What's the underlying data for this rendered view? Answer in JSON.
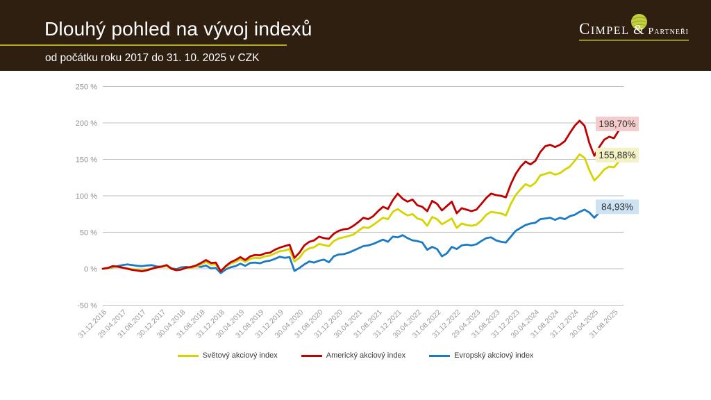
{
  "header": {
    "title": "Dlouhý pohled na vývoj indexů",
    "subtitle": "od počátku roku 2017 do 31. 10. 2025 v CZK"
  },
  "logo": {
    "brand": "Cimpel",
    "amp": "&",
    "partner": "Partneři",
    "ball_color": "#c3d042",
    "underline_color": "#8f921b"
  },
  "chart_data": {
    "type": "line",
    "points_are": "monthly values from 31.12.2016 to 31.10.2025",
    "grid": "horizontal",
    "legend_position": "bottom",
    "y_axis": {
      "min": -50,
      "max": 250,
      "step": 50,
      "ticks": [
        {
          "value": 250,
          "label": "250 %"
        },
        {
          "value": 200,
          "label": "200 %"
        },
        {
          "value": 150,
          "label": "150 %"
        },
        {
          "value": 100,
          "label": "100 %"
        },
        {
          "value": 50,
          "label": "50 %"
        },
        {
          "value": 0,
          "label": "0 %"
        },
        {
          "value": -50,
          "label": "-50 %"
        }
      ]
    },
    "x_tick_every": 4,
    "x_tick_labels": [
      "31.12.2016",
      "29.04.2017",
      "31.08.2017",
      "30.12.2017",
      "30.04.2018",
      "31.08.2018",
      "31.12.2018",
      "30.04.2019",
      "31.08.2019",
      "31.12.2019",
      "30.04.2020",
      "31.08.2020",
      "31.12.2020",
      "30.04.2021",
      "31.08.2021",
      "31.12.2021",
      "30.04.2022",
      "31.08.2022",
      "31.12.2022",
      "29.04.2023",
      "31.08.2023",
      "31.12.2023",
      "30.04.2024",
      "31.08.2024",
      "31.12.2024",
      "30.04.2025",
      "31.08.2025"
    ],
    "draw_order": [
      2,
      0,
      1
    ],
    "series": [
      {
        "id": "world",
        "name": "Světový akciový index",
        "color": "#d6d400",
        "end_label": "155,88%",
        "end_label_bg": "#f2f2c4",
        "values": [
          0,
          0.5,
          2.5,
          2.5,
          1.5,
          0.5,
          -0.5,
          -1.5,
          -2,
          -1,
          0.5,
          1.5,
          2.5,
          4,
          -0.5,
          -2,
          -0.5,
          1,
          1.5,
          3,
          6,
          9.5,
          5.5,
          6,
          -3.5,
          2.5,
          7,
          9.5,
          13,
          9.5,
          13.5,
          15,
          14.5,
          17,
          18,
          21,
          24,
          25,
          27,
          10,
          15,
          24,
          28,
          29.5,
          34,
          32.5,
          31,
          38,
          41.5,
          43,
          45,
          47,
          52,
          57,
          56,
          60,
          65,
          70,
          68,
          78,
          82,
          77,
          73,
          75,
          69,
          67,
          59,
          71,
          68,
          61,
          65,
          69,
          56,
          62,
          60,
          59,
          60.5,
          66,
          74,
          78,
          77,
          76,
          73,
          89,
          101,
          109,
          116,
          113,
          118,
          128,
          130,
          132,
          129,
          131,
          136,
          140,
          148,
          157,
          152,
          135,
          121,
          128,
          136,
          140,
          139,
          147,
          155.88
        ]
      },
      {
        "id": "us",
        "name": "Americký akciový index",
        "color": "#c00000",
        "end_label": "198,70%",
        "end_label_bg": "#f5cccc",
        "values": [
          0,
          1,
          3.5,
          3,
          1.5,
          0,
          -1.5,
          -2.5,
          -3.5,
          -2,
          0,
          2,
          3,
          5,
          0,
          -2,
          -1,
          1.5,
          2.5,
          4.5,
          8,
          12,
          8,
          8.5,
          -3.5,
          3.5,
          9,
          12,
          16,
          12,
          17,
          19,
          18.5,
          21,
          22,
          26,
          29,
          31,
          33,
          15,
          22,
          32,
          37,
          39,
          44,
          42,
          41,
          48,
          52,
          54,
          55,
          59,
          64,
          70,
          68,
          72,
          79,
          85,
          82,
          94,
          103,
          96,
          92,
          95,
          87,
          85,
          79,
          93,
          89,
          80,
          86,
          92,
          76,
          83,
          81,
          79,
          81,
          89,
          97,
          103,
          101,
          100,
          98,
          116,
          130,
          140,
          147,
          143,
          148,
          160,
          168,
          170,
          167,
          170,
          175,
          186,
          196,
          203,
          196,
          172,
          155,
          167,
          177,
          181,
          179,
          190,
          198.7
        ]
      },
      {
        "id": "europe",
        "name": "Evropský akciový index",
        "color": "#1b7ac2",
        "end_label": "84,93%",
        "end_label_bg": "#cde2f2",
        "values": [
          0,
          0.5,
          2,
          3.5,
          5,
          6,
          5,
          4,
          3.5,
          4.5,
          5,
          3,
          3,
          4.5,
          0.5,
          -0.5,
          2,
          2.5,
          1.5,
          3.5,
          2.5,
          4.5,
          0.5,
          1,
          -6,
          -1,
          2,
          3.5,
          7,
          4,
          8,
          8.5,
          7.5,
          10,
          11,
          13.5,
          16.5,
          15,
          16,
          -3,
          1,
          6,
          10,
          8.5,
          11,
          12.5,
          9,
          17,
          19.5,
          20,
          22,
          25,
          28,
          31,
          32,
          34,
          37,
          40,
          37,
          44,
          43,
          46,
          42,
          39,
          38,
          36,
          26,
          30,
          27,
          17,
          21,
          30,
          27,
          32,
          33,
          32,
          33.5,
          38,
          42,
          43,
          39,
          37,
          36,
          44,
          52,
          56,
          60,
          62,
          63,
          68,
          69,
          70,
          67,
          70,
          68,
          72,
          74,
          78,
          81,
          77,
          70,
          77,
          80,
          78,
          77.5,
          80,
          84.93
        ]
      }
    ]
  }
}
